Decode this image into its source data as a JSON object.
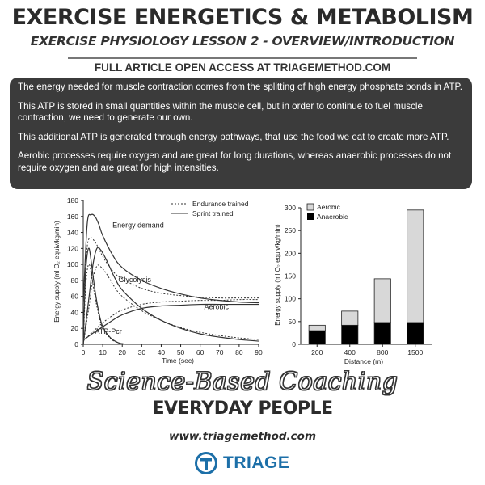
{
  "header": {
    "title": "EXERCISE ENERGETICS & METABOLISM",
    "subtitle": "EXERCISE PHYSIOLOGY LESSON 2 - OVERVIEW/INTRODUCTION",
    "access_note": "FULL ARTICLE OPEN ACCESS AT TRIAGEMETHOD.COM"
  },
  "info": {
    "paragraphs": [
      "The energy needed for muscle contraction comes from the splitting of high energy phosphate bonds in ATP.",
      "This ATP is stored in small quantities within the muscle cell, but in order to continue to fuel muscle contraction, we need to generate our own.",
      "This additional ATP is generated through energy pathways, that use the food we eat to create more ATP.",
      "Aerobic processes require oxygen and are great for long durations, whereas anaerobic processes do not require oxygen and are great for high intensities."
    ]
  },
  "chart_data": [
    {
      "type": "line",
      "title": "",
      "xlabel": "Time (sec)",
      "ylabel": "Energy supply (ml O₂ equiv/kg/min)",
      "xlim": [
        0,
        90
      ],
      "ylim": [
        0,
        180
      ],
      "xticks": [
        0,
        10,
        20,
        30,
        40,
        50,
        60,
        70,
        80,
        90
      ],
      "yticks": [
        0,
        20,
        40,
        60,
        80,
        100,
        120,
        140,
        160,
        180
      ],
      "legend": [
        {
          "name": "Endurance trained",
          "style": "dotted"
        },
        {
          "name": "Sprint trained",
          "style": "solid"
        }
      ],
      "annotations": [
        "Energy demand",
        "Glycolysis",
        "Aerobic",
        "ATP-Pcr"
      ],
      "series": [
        {
          "name": "Energy demand",
          "group": "Sprint trained",
          "x": [
            0,
            2,
            4,
            6,
            8,
            10,
            15,
            20,
            30,
            40,
            50,
            60,
            70,
            80,
            90
          ],
          "y": [
            50,
            150,
            162,
            160,
            150,
            136,
            112,
            96,
            80,
            70,
            63,
            58,
            55,
            53,
            52
          ]
        },
        {
          "name": "Energy demand",
          "group": "Endurance trained",
          "x": [
            0,
            2,
            4,
            6,
            8,
            10,
            15,
            20,
            30,
            40,
            50,
            60,
            70,
            80,
            90
          ],
          "y": [
            50,
            122,
            133,
            128,
            120,
            110,
            92,
            82,
            70,
            64,
            61,
            59,
            58,
            58,
            58
          ]
        },
        {
          "name": "Glycolysis",
          "group": "Sprint trained",
          "x": [
            0,
            3,
            5,
            7,
            9,
            12,
            16,
            20,
            30,
            40,
            50,
            60,
            70,
            80,
            90
          ],
          "y": [
            0,
            60,
            100,
            120,
            118,
            105,
            84,
            68,
            45,
            30,
            20,
            13,
            9,
            6,
            4
          ]
        },
        {
          "name": "Glycolysis",
          "group": "Endurance trained",
          "x": [
            0,
            3,
            5,
            7,
            9,
            12,
            16,
            20,
            30,
            40,
            50,
            60,
            70,
            80,
            90
          ],
          "y": [
            0,
            48,
            82,
            98,
            97,
            88,
            72,
            60,
            42,
            30,
            21,
            15,
            11,
            8,
            6
          ]
        },
        {
          "name": "Aerobic",
          "group": "Sprint trained",
          "x": [
            0,
            5,
            10,
            15,
            20,
            30,
            40,
            50,
            60,
            70,
            80,
            90
          ],
          "y": [
            5,
            14,
            22,
            30,
            37,
            45,
            48,
            49,
            50,
            50,
            50,
            50
          ]
        },
        {
          "name": "Aerobic",
          "group": "Endurance trained",
          "x": [
            0,
            5,
            10,
            15,
            20,
            30,
            40,
            50,
            60,
            70,
            80,
            90
          ],
          "y": [
            5,
            16,
            27,
            36,
            43,
            50,
            53,
            54,
            55,
            55,
            56,
            56
          ]
        },
        {
          "name": "ATP-Pcr",
          "group": "Sprint trained",
          "x": [
            0,
            1,
            2,
            3,
            4,
            6,
            8,
            10,
            14,
            18,
            22
          ],
          "y": [
            0,
            80,
            112,
            120,
            105,
            68,
            40,
            22,
            8,
            2,
            0
          ]
        },
        {
          "name": "ATP-Pcr",
          "group": "Endurance trained",
          "x": [
            0,
            1,
            2,
            3,
            4,
            6,
            8,
            10,
            14,
            18,
            22
          ],
          "y": [
            0,
            62,
            92,
            100,
            90,
            60,
            36,
            20,
            7,
            2,
            0
          ]
        }
      ]
    },
    {
      "type": "bar",
      "stacked": true,
      "title": "",
      "xlabel": "Distance (m)",
      "ylabel": "Energy supply (ml O₂ equiv/kg/min)",
      "categories": [
        "200",
        "400",
        "800",
        "1500"
      ],
      "ylim": [
        0,
        300
      ],
      "yticks": [
        0,
        50,
        100,
        150,
        200,
        250,
        300
      ],
      "legend_position": "top-left",
      "series": [
        {
          "name": "Anaerobic",
          "color": "#000000",
          "values": [
            30,
            42,
            48,
            48
          ]
        },
        {
          "name": "Aerobic",
          "color": "#d8d8d8",
          "values": [
            12,
            31,
            96,
            247
          ]
        }
      ]
    }
  ],
  "footer": {
    "tagline_script": "Science-Based Coaching",
    "tagline_bold": "EVERYDAY PEOPLE",
    "website": "www.triagemethod.com",
    "logo_text": "TRIAGE",
    "logo_icon": "t-circle-icon"
  },
  "colors": {
    "panel": "#3b3b3b",
    "brand": "#1c6fa8",
    "aerobic": "#d8d8d8",
    "anaerobic": "#000000"
  }
}
